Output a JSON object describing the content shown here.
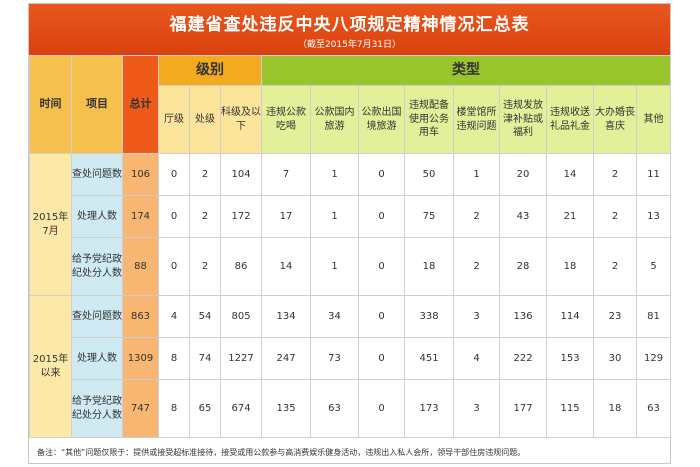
{
  "title": "福建省查处违反中央八项规定精神情况汇总表",
  "subtitle": "（截至2015年7月31日）",
  "headers": {
    "time": "时间",
    "item": "项目",
    "total": "总计",
    "level_group": "级别",
    "type_group": "类型",
    "levels": [
      "厅级",
      "处级",
      "科级及以下"
    ],
    "types": [
      "违规公款吃喝",
      "公款国内旅游",
      "公款出国境旅游",
      "违规配备使用公务用车",
      "楼堂馆所违规问题",
      "违规发放津补贴或福利",
      "违规收送礼品礼金",
      "大办婚丧喜庆",
      "其他"
    ]
  },
  "groups": [
    {
      "time": "2015年7月",
      "rows": [
        {
          "item": "查处问题数",
          "values": [
            "106",
            "0",
            "2",
            "104",
            "7",
            "1",
            "0",
            "50",
            "1",
            "20",
            "14",
            "2",
            "11"
          ]
        },
        {
          "item": "处理人数",
          "values": [
            "174",
            "0",
            "2",
            "172",
            "17",
            "1",
            "0",
            "75",
            "2",
            "43",
            "21",
            "2",
            "13"
          ]
        },
        {
          "item": "给予党纪政纪处分人数",
          "values": [
            "88",
            "0",
            "2",
            "86",
            "14",
            "1",
            "0",
            "18",
            "2",
            "28",
            "18",
            "2",
            "5"
          ]
        }
      ]
    },
    {
      "time": "2015年以来",
      "rows": [
        {
          "item": "查处问题数",
          "values": [
            "863",
            "4",
            "54",
            "805",
            "134",
            "34",
            "0",
            "338",
            "3",
            "136",
            "114",
            "23",
            "81"
          ]
        },
        {
          "item": "处理人数",
          "values": [
            "1309",
            "8",
            "74",
            "1227",
            "247",
            "73",
            "0",
            "451",
            "4",
            "222",
            "153",
            "30",
            "129"
          ]
        },
        {
          "item": "给予党纪政纪处分人数",
          "values": [
            "747",
            "8",
            "65",
            "674",
            "135",
            "63",
            "0",
            "173",
            "3",
            "177",
            "115",
            "18",
            "63"
          ]
        }
      ]
    }
  ],
  "note": "备注：“其他”问题仅限于：提供或接受超标准接待，接受或用公款参与高消费娱乐健身活动，违规出入私人会所，领导干部住房违规问题。"
}
